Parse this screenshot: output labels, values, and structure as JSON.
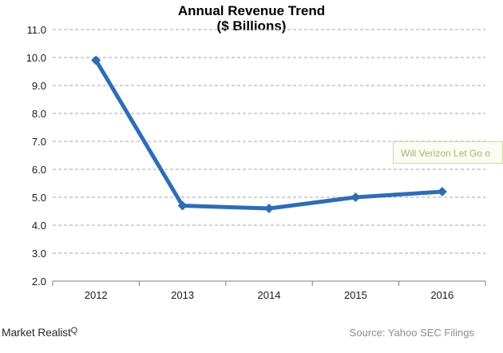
{
  "chart_data": {
    "type": "line",
    "title": "Annual Revenue Trend",
    "subtitle": "($ Billions)",
    "categories": [
      "2012",
      "2013",
      "2014",
      "2015",
      "2016"
    ],
    "series": [
      {
        "values": [
          9.9,
          4.7,
          4.6,
          5.0,
          5.2
        ],
        "color": "#2e6db4"
      }
    ],
    "ylim": [
      2.0,
      11.0
    ],
    "yticks": [
      "2.0",
      "3.0",
      "4.0",
      "5.0",
      "6.0",
      "7.0",
      "8.0",
      "9.0",
      "10.0",
      "11.0"
    ],
    "grid": true,
    "legend": "none",
    "marker": "diamond"
  },
  "overlay": {
    "tooltip_text": "Will Verizon Let Go o"
  },
  "branding": {
    "logo_text": "Market Realist",
    "logo_mark": "Q"
  },
  "source_text": "Source: Yahoo SEC Filings"
}
